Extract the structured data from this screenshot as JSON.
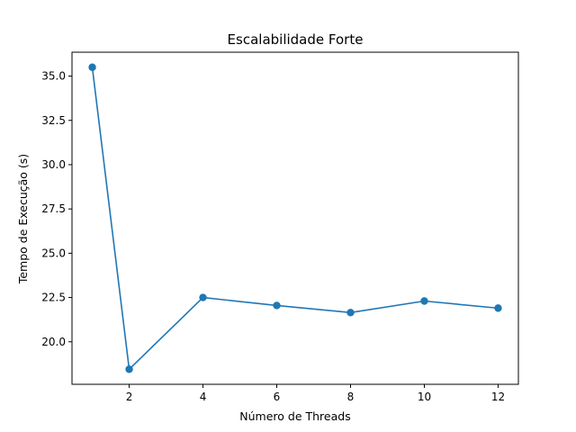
{
  "chart_data": {
    "type": "line",
    "title": "Escalabilidade Forte",
    "xlabel": "Número de Threads",
    "ylabel": "Tempo de Execução (s)",
    "x": [
      1,
      2,
      4,
      6,
      8,
      10,
      12
    ],
    "series": [
      {
        "values": [
          35.5,
          18.45,
          22.5,
          22.05,
          21.65,
          22.3,
          21.9
        ],
        "color": "#1f77b4",
        "marker": "circle"
      }
    ],
    "xlim": [
      0.45,
      12.55
    ],
    "ylim": [
      17.6,
      36.35
    ],
    "xticks": [
      2,
      4,
      6,
      8,
      10,
      12
    ],
    "xtick_labels": [
      "2",
      "4",
      "6",
      "8",
      "10",
      "12"
    ],
    "yticks": [
      20.0,
      22.5,
      25.0,
      27.5,
      30.0,
      32.5,
      35.0
    ],
    "ytick_labels": [
      "20.0",
      "22.5",
      "25.0",
      "27.5",
      "30.0",
      "32.5",
      "35.0"
    ],
    "grid": false,
    "legend": "none"
  }
}
